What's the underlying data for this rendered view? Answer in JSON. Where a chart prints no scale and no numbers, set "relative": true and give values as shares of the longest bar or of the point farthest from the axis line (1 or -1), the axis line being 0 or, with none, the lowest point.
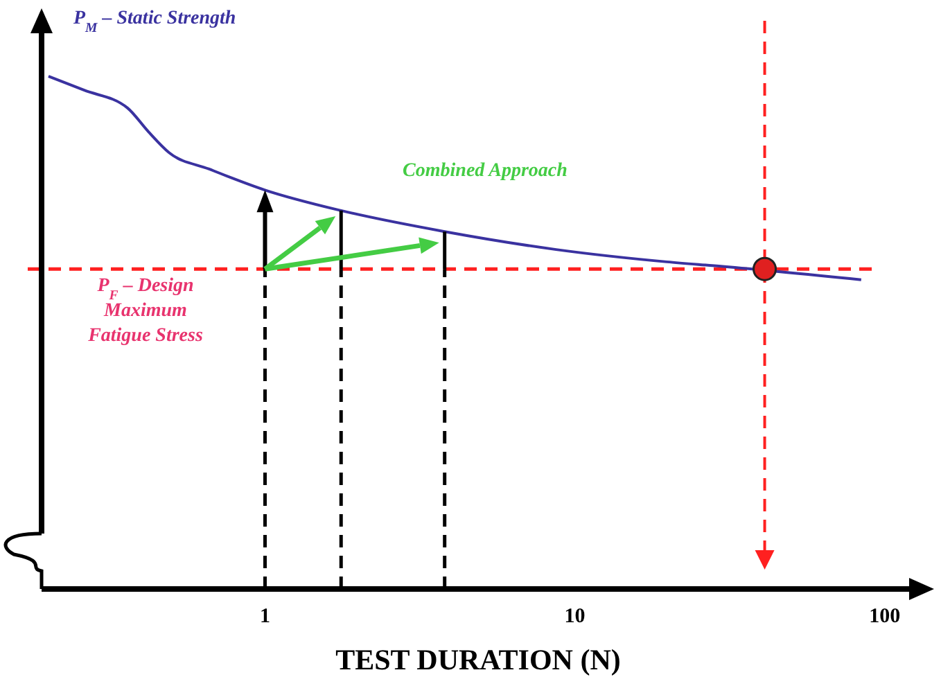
{
  "chart_data": {
    "type": "line",
    "relative": true,
    "log": "x",
    "xlabel": "TEST DURATION (N)",
    "xlim": [
      0.19,
      125
    ],
    "xticks": [
      1,
      10,
      100
    ],
    "series": [
      {
        "color": "#3a32a0",
        "marker": "none",
        "x": [
          0.2,
          0.26,
          0.36,
          0.42,
          0.49,
          0.66,
          1,
          1.76,
          3.8,
          8.7,
          19.8,
          30,
          84
        ],
        "values": [
          1,
          0.973,
          0.938,
          0.892,
          0.851,
          0.819,
          0.778,
          0.738,
          0.697,
          0.662,
          0.638,
          0.629,
          0.603
        ]
      },
      {
        "type": "scatter",
        "color": "#e02020",
        "marker": "circle",
        "x": [
          41
        ],
        "values": [
          0.624
        ]
      }
    ],
    "ref_lines": [
      {
        "axis": "y",
        "value": 0.624,
        "label": "P$_{F}$ – Design Maximum Fatigue Stress",
        "color": "#ff2020",
        "line_style": "dashed"
      },
      {
        "axis": "x",
        "value": 41,
        "color": "#ff2020",
        "line_style": "dashed"
      },
      {
        "axis": "x",
        "value": 1,
        "color": "#000000",
        "line_style": "dashed"
      },
      {
        "axis": "x",
        "value": 1.76,
        "color": "#000000",
        "line_style": "dashed"
      },
      {
        "axis": "x",
        "value": 3.8,
        "color": "#000000",
        "line_style": "dashed"
      }
    ],
    "annotations": [
      {
        "text": "P$_{M}$ – Static Strength",
        "x": 0.2,
        "y": 1
      },
      "Combined Approach"
    ]
  }
}
